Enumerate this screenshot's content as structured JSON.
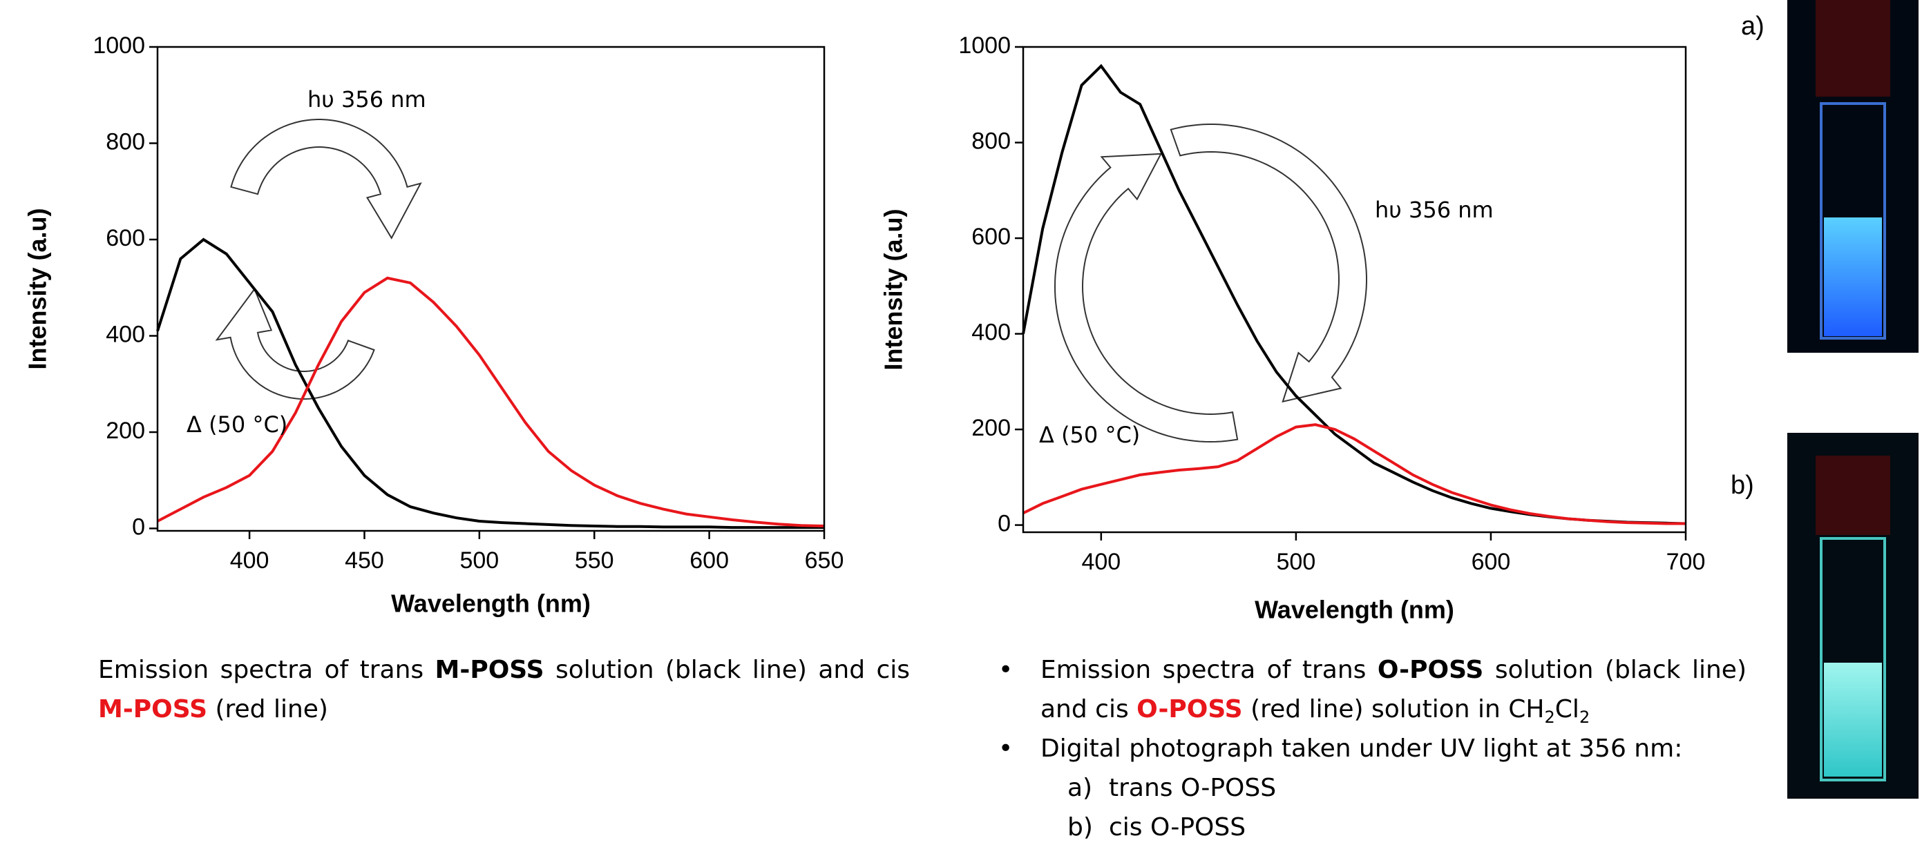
{
  "chart_data": [
    {
      "type": "line",
      "xlabel": "Wavelength (nm)",
      "ylabel": "Intensity (a.u)",
      "annotations": [
        "hυ 356 nm",
        "Δ (50 °C)"
      ],
      "x": [
        360,
        370,
        380,
        390,
        400,
        410,
        420,
        430,
        440,
        450,
        460,
        470,
        480,
        490,
        500,
        510,
        520,
        530,
        540,
        550,
        560,
        570,
        580,
        590,
        600,
        610,
        620,
        630,
        640,
        650
      ],
      "xlim": [
        360,
        650
      ],
      "xticks": [
        400,
        450,
        500,
        550,
        600,
        650
      ],
      "ylim": [
        -5,
        1000
      ],
      "yticks": [
        0,
        200,
        400,
        600,
        800,
        1000
      ],
      "series": [
        {
          "color": "#000000",
          "values": [
            410,
            560,
            600,
            570,
            510,
            450,
            340,
            250,
            170,
            110,
            70,
            45,
            32,
            22,
            15,
            12,
            10,
            8,
            6,
            5,
            4,
            4,
            3,
            3,
            3,
            2,
            2,
            2,
            2,
            2
          ]
        },
        {
          "color": "#e8161b",
          "values": [
            15,
            40,
            65,
            85,
            110,
            160,
            240,
            340,
            430,
            490,
            520,
            510,
            470,
            420,
            360,
            290,
            220,
            160,
            120,
            90,
            68,
            52,
            40,
            30,
            24,
            18,
            13,
            9,
            6,
            5
          ]
        }
      ]
    },
    {
      "type": "line",
      "xlabel": "Wavelength (nm)",
      "ylabel": "Intensity (a.u)",
      "annotations": [
        "hυ 356 nm",
        "Δ (50 °C)"
      ],
      "x": [
        360,
        370,
        380,
        390,
        400,
        410,
        420,
        430,
        440,
        450,
        460,
        470,
        480,
        490,
        500,
        510,
        520,
        530,
        540,
        550,
        560,
        570,
        580,
        590,
        600,
        610,
        620,
        630,
        640,
        650,
        660,
        670,
        680,
        690,
        700
      ],
      "xlim": [
        360,
        700
      ],
      "xticks": [
        400,
        500,
        600,
        700
      ],
      "ylim": [
        -15,
        1000
      ],
      "yticks": [
        0,
        200,
        400,
        600,
        800,
        1000
      ],
      "series": [
        {
          "color": "#000000",
          "values": [
            400,
            620,
            780,
            920,
            960,
            905,
            880,
            790,
            700,
            620,
            540,
            460,
            385,
            320,
            270,
            230,
            190,
            160,
            130,
            110,
            90,
            72,
            57,
            45,
            35,
            28,
            22,
            17,
            13,
            10,
            8,
            6,
            5,
            4,
            3
          ]
        },
        {
          "color": "#e8161b",
          "values": [
            25,
            45,
            60,
            75,
            85,
            95,
            105,
            110,
            115,
            118,
            122,
            135,
            160,
            185,
            205,
            210,
            200,
            180,
            155,
            130,
            105,
            85,
            68,
            55,
            42,
            32,
            24,
            18,
            13,
            10,
            7,
            5,
            4,
            3,
            3
          ]
        }
      ]
    }
  ],
  "captions": {
    "left": [
      "Emission spectra of trans ",
      "M-POSS",
      " solution (black line) and cis ",
      "M-POSS",
      " (red line)"
    ],
    "right": {
      "bullets": [
        [
          "Emission spectra of trans ",
          "O-POSS",
          " solution (black line) and cis ",
          "O-POSS",
          " (red line) solution in ",
          "CH",
          "2",
          "Cl",
          "2"
        ],
        [
          "Digital photograph taken under UV light at 356 nm:"
        ]
      ],
      "sublist": [
        {
          "label": "a)",
          "text": "trans O-POSS"
        },
        {
          "label": "b)",
          "text": "cis O-POSS"
        }
      ]
    }
  },
  "photo_labels": [
    "a)",
    "b)"
  ]
}
